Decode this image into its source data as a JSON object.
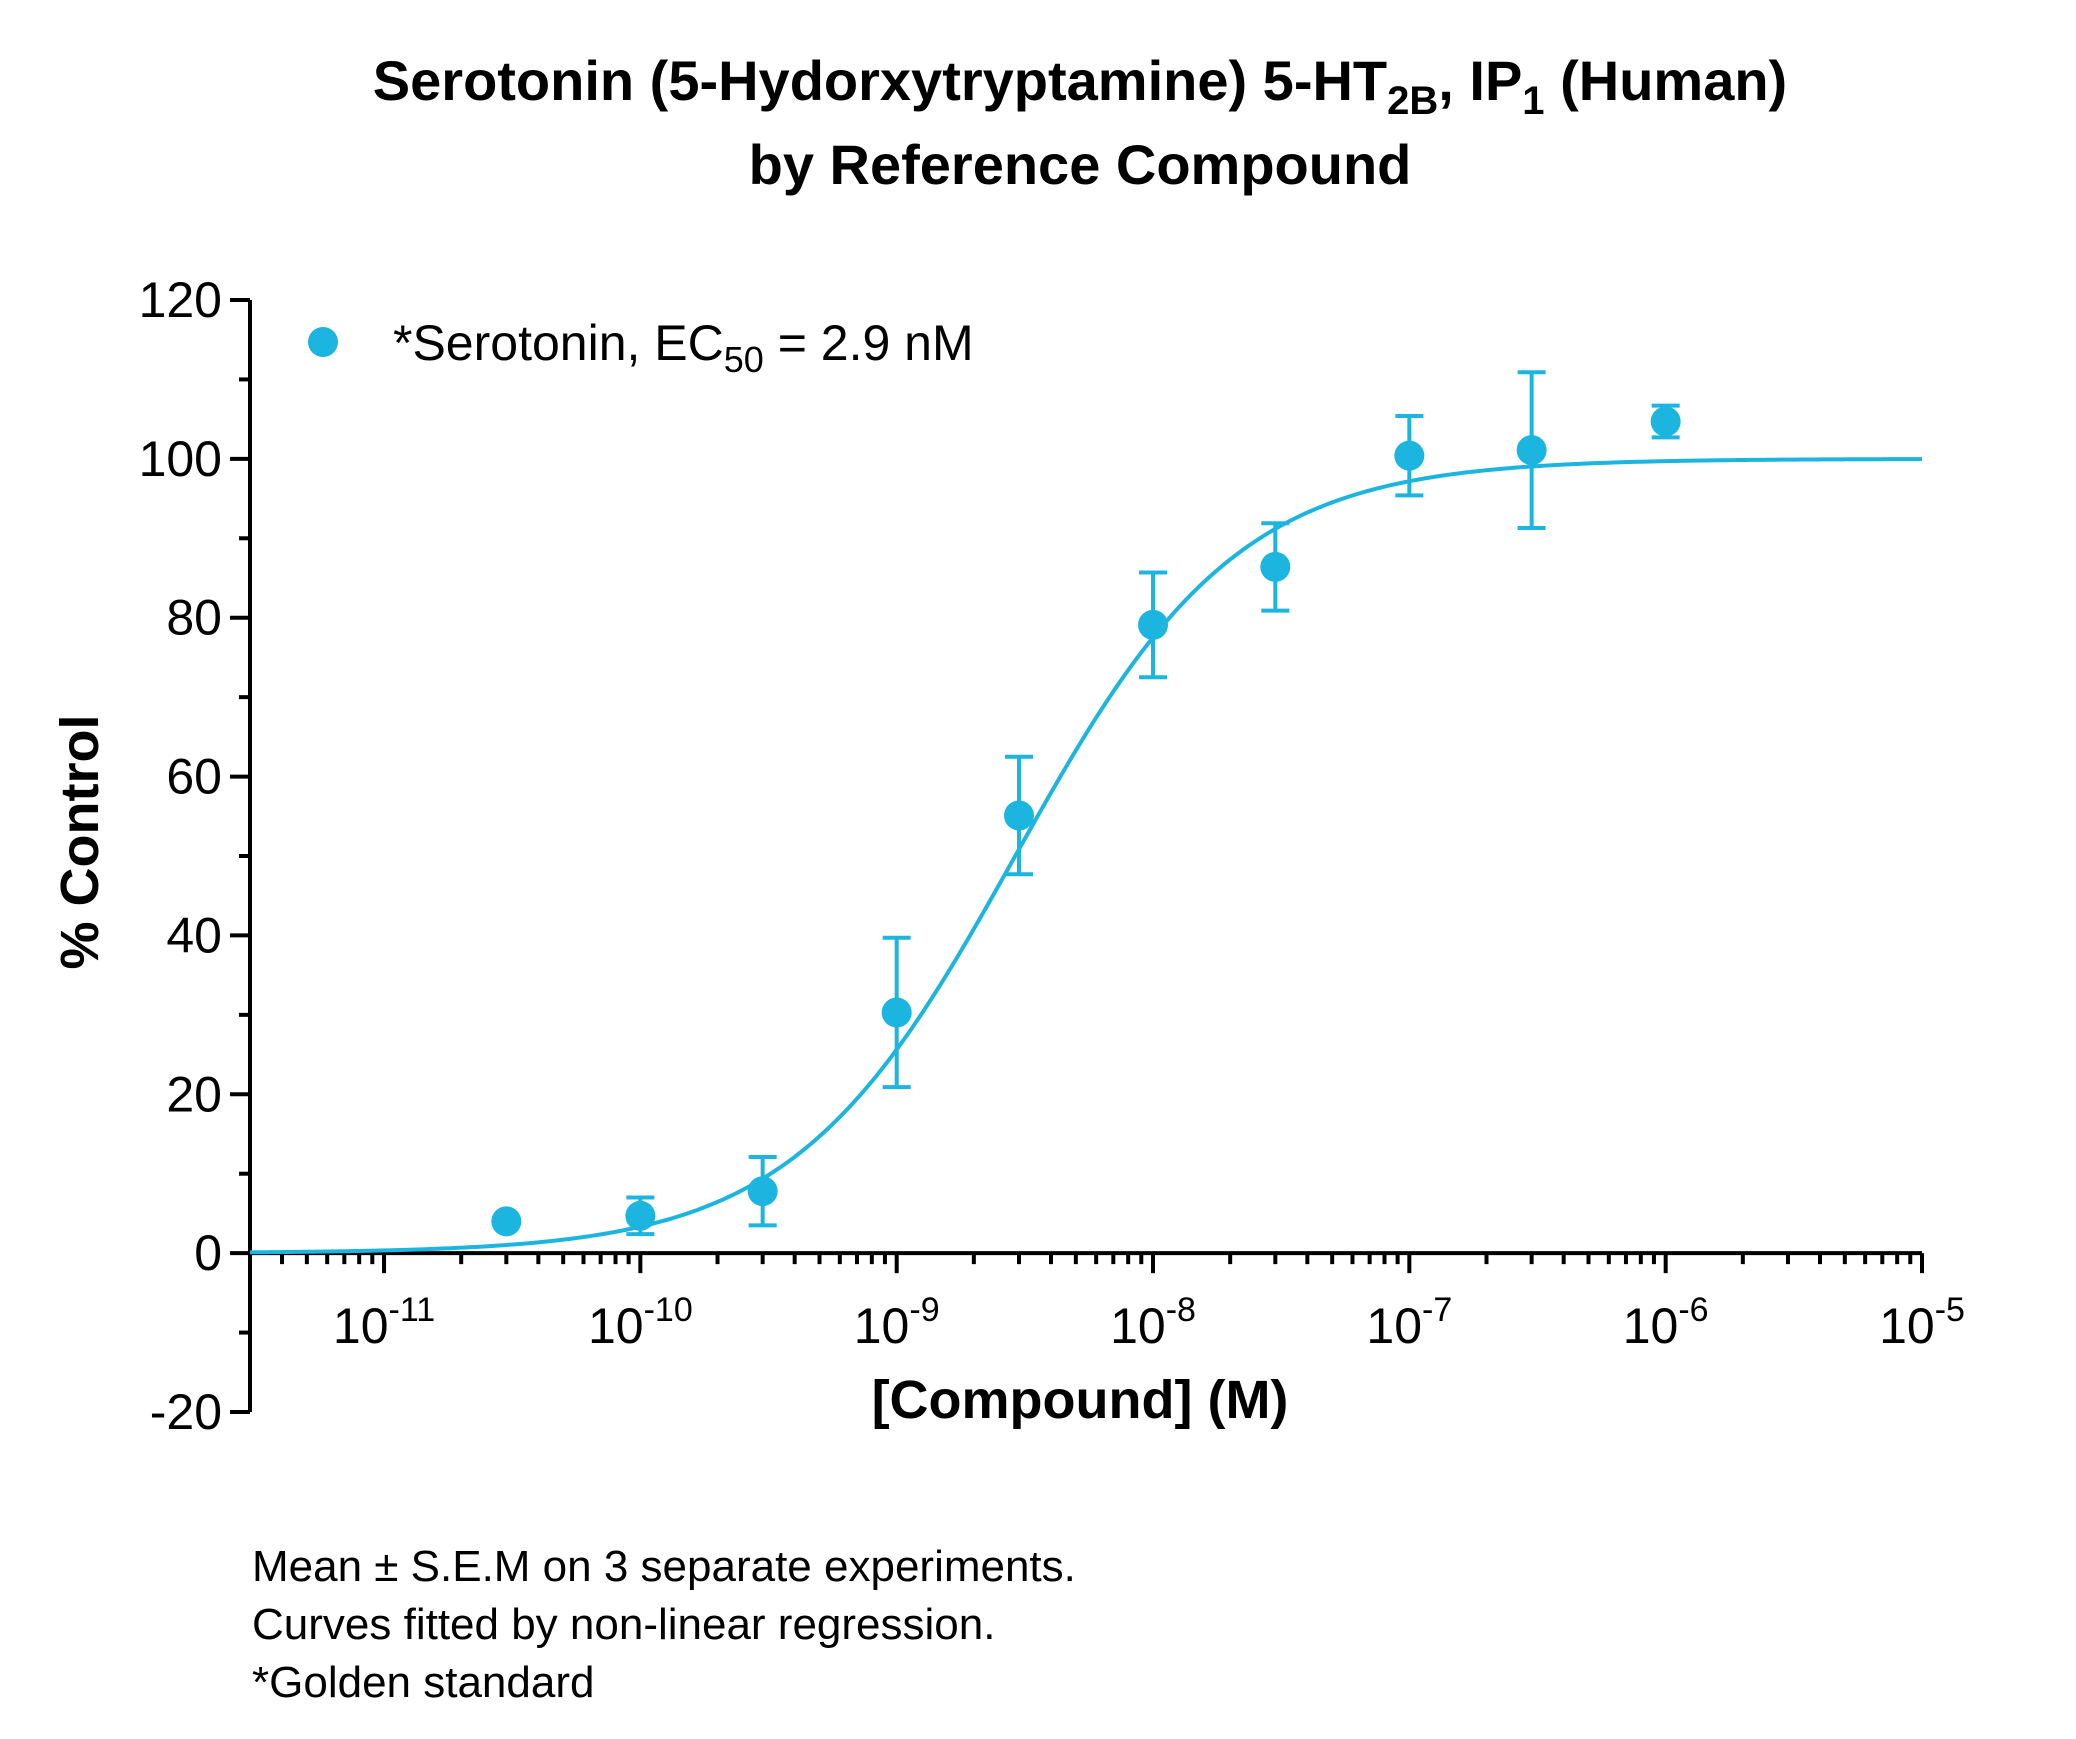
{
  "title": {
    "line1": {
      "pre": "Serotonin (5-Hydorxytryptamine) 5-HT",
      "sub1": "2B",
      "mid": ", IP",
      "sub2": "1",
      "post": " (Human)"
    },
    "line2": "by Reference Compound"
  },
  "chart_data": {
    "type": "scatter",
    "x_scale": "log",
    "xlabel": "[Compound] (M)",
    "ylabel": "% Control",
    "xlim": [
      3e-12,
      1e-05
    ],
    "ylim": [
      -20,
      120
    ],
    "y_ticks": [
      -20,
      0,
      20,
      40,
      60,
      80,
      100,
      120
    ],
    "x_ticks": [
      {
        "value": 1e-11,
        "base": "10",
        "exp": "-11"
      },
      {
        "value": 1e-10,
        "base": "10",
        "exp": "-10"
      },
      {
        "value": 1e-09,
        "base": "10",
        "exp": "-9"
      },
      {
        "value": 1e-08,
        "base": "10",
        "exp": "-8"
      },
      {
        "value": 1e-07,
        "base": "10",
        "exp": "-7"
      },
      {
        "value": 1e-06,
        "base": "10",
        "exp": "-6"
      },
      {
        "value": 1e-05,
        "base": "10",
        "exp": "-5"
      }
    ],
    "grid": false,
    "legend_position": "top-left",
    "color": "#1cb5e0",
    "series": [
      {
        "name": "*Serotonin, EC50 = 2.9 nM",
        "points": [
          {
            "x": 3e-11,
            "y": 4.0,
            "sem": 0
          },
          {
            "x": 1e-10,
            "y": 4.7,
            "sem": 2.3
          },
          {
            "x": 3e-10,
            "y": 7.8,
            "sem": 4.3
          },
          {
            "x": 1e-09,
            "y": 30.3,
            "sem": 9.4
          },
          {
            "x": 3e-09,
            "y": 55.1,
            "sem": 7.4
          },
          {
            "x": 1e-08,
            "y": 79.1,
            "sem": 6.6
          },
          {
            "x": 3e-08,
            "y": 86.4,
            "sem": 5.5
          },
          {
            "x": 1e-07,
            "y": 100.4,
            "sem": 5.0
          },
          {
            "x": 3e-07,
            "y": 101.1,
            "sem": 9.8
          },
          {
            "x": 1e-06,
            "y": 104.7,
            "sem": 2.0
          }
        ],
        "fit": {
          "model": "sigmoidal dose-response",
          "bottom": 0,
          "top": 100,
          "ec50": 2.9e-09,
          "hill": 1.0
        }
      }
    ]
  },
  "legend": {
    "pre": "*Serotonin, EC",
    "sub": "50",
    "post": " = 2.9 nM"
  },
  "footnotes": [
    "Mean ± S.E.M on 3 separate experiments.",
    "Curves fitted by non-linear regression.",
    "*Golden standard"
  ]
}
